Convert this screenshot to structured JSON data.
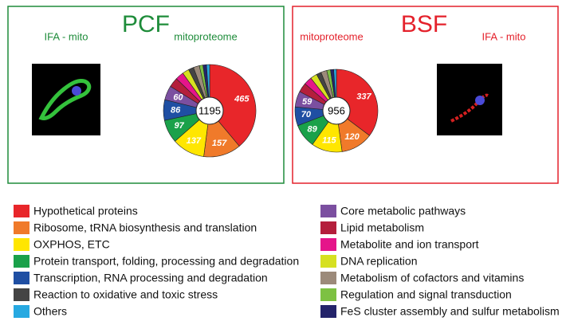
{
  "chart_data": [
    {
      "type": "pie",
      "title": "PCF",
      "color": "#1e8c3a",
      "image_label": "IFA - mito",
      "subtitle": "mitoproteome",
      "total": 1195,
      "values": [
        465,
        157,
        137,
        97,
        86,
        22,
        13,
        60,
        40,
        35,
        28,
        25,
        15,
        15
      ]
    },
    {
      "type": "pie",
      "title": "BSF",
      "color": "#e4212b",
      "image_label": "IFA - mito",
      "subtitle": "mitoproteome",
      "total": 956,
      "values": [
        337,
        120,
        115,
        89,
        70,
        18,
        10,
        59,
        35,
        30,
        25,
        22,
        14,
        12
      ]
    }
  ],
  "legend": {
    "categories": [
      "Hypothetical proteins",
      "Ribosome, tRNA biosynthesis and translation",
      "OXPHOS, ETC",
      "Protein transport, folding, processing and degradation",
      "Transcription, RNA processing and degradation",
      "Reaction to oxidative and toxic stress",
      "Others",
      "Core metabolic pathways",
      "Lipid metabolism",
      "Metabolite and ion transport",
      "DNA replication",
      "Metabolism of cofactors and vitamins",
      "Regulation and signal transduction",
      "FeS cluster assembly and sulfur metabolism"
    ],
    "colors": [
      "#e8262a",
      "#f07a2a",
      "#ffe600",
      "#1aa14a",
      "#1f4fa3",
      "#444444",
      "#27a9e1",
      "#7b4fa0",
      "#b41f3c",
      "#e5158a",
      "#d6e021",
      "#9c8a7a",
      "#7dc142",
      "#24246b"
    ]
  }
}
